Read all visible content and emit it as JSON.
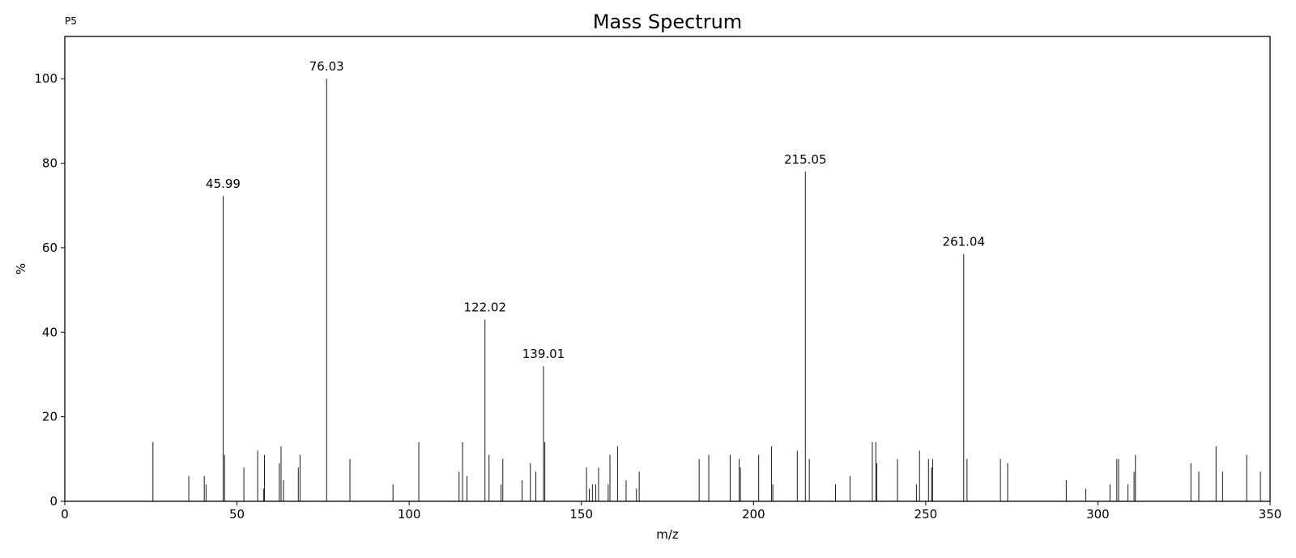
{
  "corner_label": "P5",
  "chart_data": {
    "type": "bar",
    "title": "Mass Spectrum",
    "xlabel": "m/z",
    "ylabel": "%",
    "xlim": [
      0,
      350
    ],
    "ylim": [
      0,
      110
    ],
    "xticks": [
      0,
      50,
      100,
      150,
      200,
      250,
      300,
      350
    ],
    "yticks": [
      0,
      20,
      40,
      60,
      80,
      100
    ],
    "grid": false,
    "line_color": "#000000",
    "peaks": [
      {
        "mz": 25.6,
        "intensity": 14
      },
      {
        "mz": 36.0,
        "intensity": 6
      },
      {
        "mz": 40.5,
        "intensity": 6
      },
      {
        "mz": 41.0,
        "intensity": 4
      },
      {
        "mz": 45.99,
        "intensity": 72.2,
        "label": "45.99"
      },
      {
        "mz": 46.4,
        "intensity": 11
      },
      {
        "mz": 52.0,
        "intensity": 8
      },
      {
        "mz": 56.0,
        "intensity": 12
      },
      {
        "mz": 57.7,
        "intensity": 3
      },
      {
        "mz": 58.0,
        "intensity": 11
      },
      {
        "mz": 62.3,
        "intensity": 9
      },
      {
        "mz": 62.8,
        "intensity": 13
      },
      {
        "mz": 63.5,
        "intensity": 5
      },
      {
        "mz": 67.8,
        "intensity": 8
      },
      {
        "mz": 68.3,
        "intensity": 11
      },
      {
        "mz": 76.03,
        "intensity": 100,
        "label": "76.03"
      },
      {
        "mz": 82.8,
        "intensity": 10
      },
      {
        "mz": 95.3,
        "intensity": 4
      },
      {
        "mz": 102.8,
        "intensity": 14
      },
      {
        "mz": 114.5,
        "intensity": 7
      },
      {
        "mz": 115.5,
        "intensity": 14
      },
      {
        "mz": 116.8,
        "intensity": 6
      },
      {
        "mz": 122.02,
        "intensity": 43,
        "label": "122.02"
      },
      {
        "mz": 123.2,
        "intensity": 11
      },
      {
        "mz": 126.7,
        "intensity": 4
      },
      {
        "mz": 127.2,
        "intensity": 10
      },
      {
        "mz": 132.8,
        "intensity": 5
      },
      {
        "mz": 135.2,
        "intensity": 9
      },
      {
        "mz": 136.8,
        "intensity": 7
      },
      {
        "mz": 139.01,
        "intensity": 32,
        "label": "139.01"
      },
      {
        "mz": 139.4,
        "intensity": 14
      },
      {
        "mz": 151.5,
        "intensity": 8
      },
      {
        "mz": 152.3,
        "intensity": 3
      },
      {
        "mz": 153.2,
        "intensity": 4
      },
      {
        "mz": 154.2,
        "intensity": 4
      },
      {
        "mz": 155.0,
        "intensity": 8
      },
      {
        "mz": 157.8,
        "intensity": 4
      },
      {
        "mz": 158.3,
        "intensity": 11
      },
      {
        "mz": 160.5,
        "intensity": 13
      },
      {
        "mz": 163.0,
        "intensity": 5
      },
      {
        "mz": 166.0,
        "intensity": 3
      },
      {
        "mz": 166.8,
        "intensity": 7
      },
      {
        "mz": 184.2,
        "intensity": 10
      },
      {
        "mz": 187.0,
        "intensity": 11
      },
      {
        "mz": 193.2,
        "intensity": 11
      },
      {
        "mz": 195.8,
        "intensity": 10
      },
      {
        "mz": 196.2,
        "intensity": 8
      },
      {
        "mz": 201.5,
        "intensity": 11
      },
      {
        "mz": 205.2,
        "intensity": 13
      },
      {
        "mz": 205.6,
        "intensity": 4
      },
      {
        "mz": 212.7,
        "intensity": 12
      },
      {
        "mz": 215.05,
        "intensity": 78,
        "label": "215.05"
      },
      {
        "mz": 216.2,
        "intensity": 10
      },
      {
        "mz": 223.8,
        "intensity": 4
      },
      {
        "mz": 228.0,
        "intensity": 6
      },
      {
        "mz": 234.5,
        "intensity": 14
      },
      {
        "mz": 235.5,
        "intensity": 14
      },
      {
        "mz": 235.8,
        "intensity": 9
      },
      {
        "mz": 241.8,
        "intensity": 10
      },
      {
        "mz": 247.3,
        "intensity": 4
      },
      {
        "mz": 248.2,
        "intensity": 12
      },
      {
        "mz": 250.8,
        "intensity": 10
      },
      {
        "mz": 251.7,
        "intensity": 8
      },
      {
        "mz": 252.0,
        "intensity": 10
      },
      {
        "mz": 261.04,
        "intensity": 58.5,
        "label": "261.04"
      },
      {
        "mz": 262.0,
        "intensity": 10
      },
      {
        "mz": 271.7,
        "intensity": 10
      },
      {
        "mz": 273.8,
        "intensity": 9
      },
      {
        "mz": 290.8,
        "intensity": 5
      },
      {
        "mz": 296.5,
        "intensity": 3
      },
      {
        "mz": 303.5,
        "intensity": 4
      },
      {
        "mz": 305.5,
        "intensity": 10
      },
      {
        "mz": 306.0,
        "intensity": 10
      },
      {
        "mz": 308.7,
        "intensity": 4
      },
      {
        "mz": 310.5,
        "intensity": 7
      },
      {
        "mz": 310.9,
        "intensity": 11
      },
      {
        "mz": 327.0,
        "intensity": 9
      },
      {
        "mz": 329.3,
        "intensity": 7
      },
      {
        "mz": 334.3,
        "intensity": 13
      },
      {
        "mz": 336.2,
        "intensity": 7
      },
      {
        "mz": 343.2,
        "intensity": 11
      },
      {
        "mz": 347.2,
        "intensity": 7
      }
    ]
  }
}
